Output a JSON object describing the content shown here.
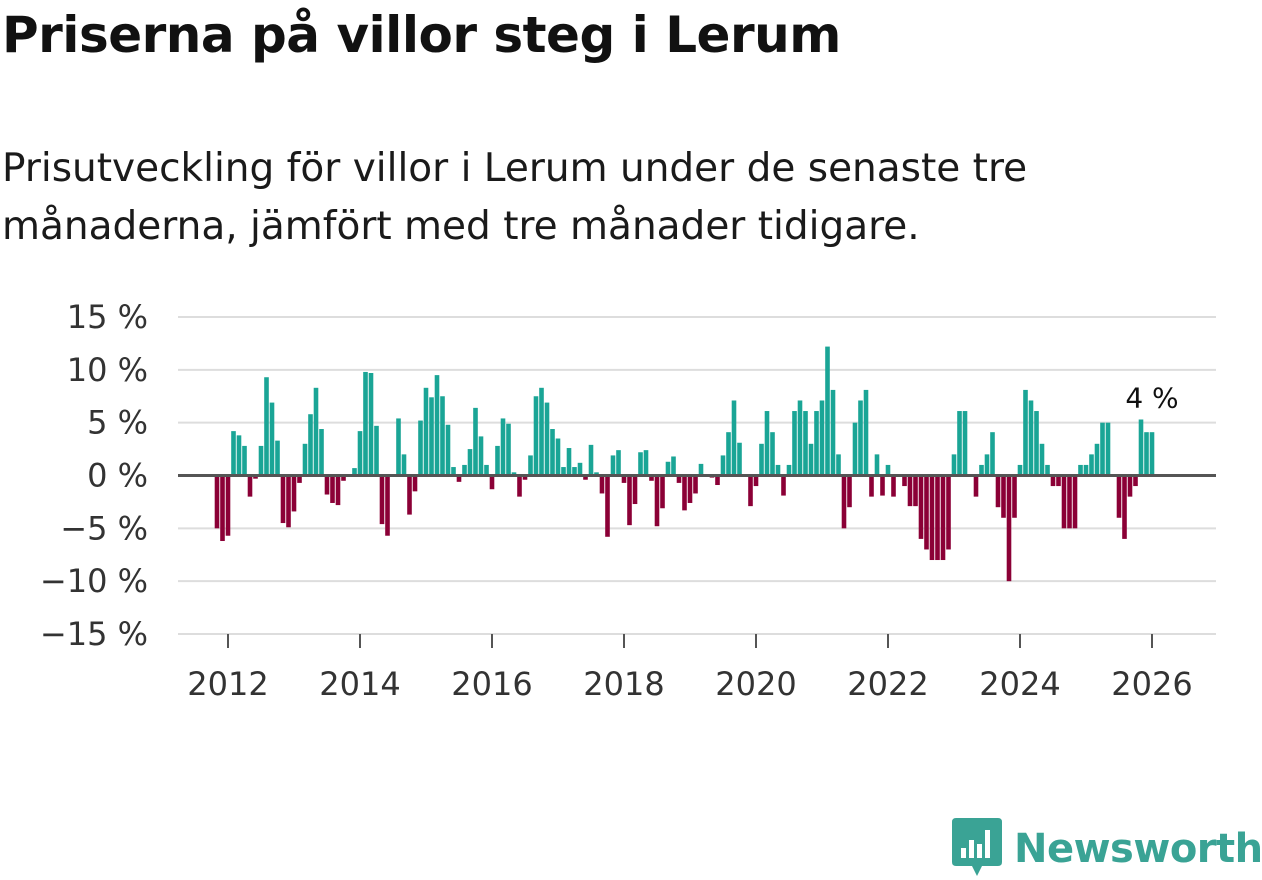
{
  "header": {
    "title": "Priserna på villor steg i Lerum",
    "subtitle": "Prisutveckling för villor i Lerum under de senaste tre månaderna, jämfört med tre månader tidigare."
  },
  "colors": {
    "positive": "#1aa596",
    "negative": "#8b0036",
    "grid": "#dddddd",
    "zero": "#555555",
    "brand": "#3aa395"
  },
  "brand": {
    "name": "Newsworthy",
    "icon": "bar-chart-badge-icon"
  },
  "chart_data": {
    "type": "bar",
    "title": "Priserna på villor steg i Lerum",
    "ylabel": "",
    "xlabel": "",
    "ylim": [
      -15,
      15
    ],
    "y_ticks": [
      15,
      10,
      5,
      0,
      -5,
      -10,
      -15
    ],
    "y_tick_labels": [
      "15 %",
      "10 %",
      "5 %",
      "0 %",
      "−5 %",
      "−10 %",
      "−15 %"
    ],
    "x_ticks": [
      2012,
      2014,
      2016,
      2018,
      2020,
      2022,
      2024,
      2026
    ],
    "x_tick_labels": [
      "2012",
      "2014",
      "2016",
      "2018",
      "2020",
      "2022",
      "2024",
      "2026"
    ],
    "start": "2011-11",
    "interval": "month",
    "grid": true,
    "annotation": {
      "label": "4 %",
      "target": "last"
    },
    "values": [
      -5,
      -6.2,
      -5.7,
      4.2,
      3.8,
      2.8,
      -2,
      -0.3,
      2.8,
      9.3,
      6.9,
      3.3,
      -4.5,
      -4.9,
      -3.4,
      -0.7,
      3,
      5.8,
      8.3,
      4.4,
      -1.8,
      -2.6,
      -2.8,
      -0.5,
      0,
      0.7,
      4.2,
      9.8,
      9.7,
      4.7,
      -4.6,
      -5.7,
      0,
      5.4,
      2,
      -3.7,
      -1.5,
      5.2,
      8.3,
      7.4,
      9.5,
      7.5,
      4.8,
      0.8,
      -0.6,
      1,
      2.5,
      6.4,
      3.7,
      1,
      -1.3,
      2.8,
      5.4,
      4.9,
      0.3,
      -2,
      -0.4,
      1.9,
      7.5,
      8.3,
      6.9,
      4.4,
      3.5,
      0.8,
      2.6,
      0.8,
      1.2,
      -0.4,
      2.9,
      0.3,
      -1.7,
      -5.8,
      1.9,
      2.4,
      -0.7,
      -4.7,
      -2.7,
      2.2,
      2.4,
      -0.5,
      -4.8,
      -3.1,
      1.3,
      1.8,
      -0.7,
      -3.3,
      -2.6,
      -1.7,
      1.1,
      0,
      -0.2,
      -0.9,
      1.9,
      4.1,
      7.1,
      3.1,
      0,
      -2.9,
      -1,
      3,
      6.1,
      4.1,
      1,
      -1.9,
      1,
      6.1,
      7.1,
      6.1,
      3,
      6.1,
      7.1,
      12.2,
      8.1,
      2,
      -5,
      -3,
      5,
      7.1,
      8.1,
      -2,
      2,
      -1.9,
      1,
      -2,
      0,
      -1,
      -2.9,
      -2.9,
      -6,
      -7,
      -8,
      -8,
      -8,
      -7,
      2,
      6.1,
      6.1,
      0,
      -2,
      1,
      2,
      4.1,
      -3,
      -4,
      -10,
      -4,
      1,
      8.1,
      7.1,
      6.1,
      3,
      1,
      -1,
      -1,
      -5,
      -5,
      -5,
      1,
      1,
      2,
      3,
      5,
      5,
      0,
      -4,
      -6,
      -2,
      -1,
      5.3,
      4.1,
      4.1
    ]
  }
}
